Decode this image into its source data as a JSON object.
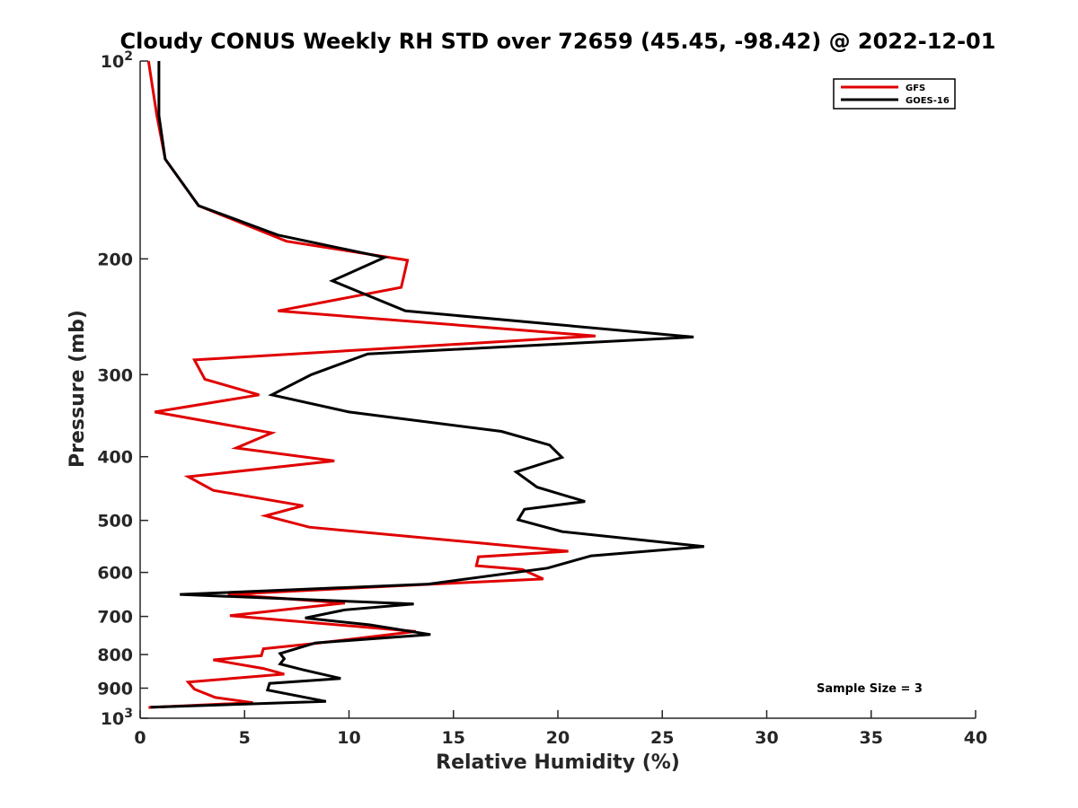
{
  "chart_data": {
    "type": "line",
    "title": "Cloudy CONUS Weekly RH STD over 72659 (45.45, -98.42) @ 2022-12-01",
    "xlabel": "Relative Humidity (%)",
    "ylabel": "Pressure (mb)",
    "xlim": [
      0,
      40
    ],
    "ylim": [
      100,
      1000
    ],
    "y_scale": "log",
    "y_reversed": true,
    "x_ticks": [
      0,
      5,
      10,
      15,
      20,
      25,
      30,
      35,
      40
    ],
    "x_tick_labels": [
      "0",
      "5",
      "10",
      "15",
      "20",
      "25",
      "30",
      "35",
      "40"
    ],
    "y_ticks": [
      100,
      200,
      300,
      400,
      500,
      600,
      700,
      800,
      900,
      1000
    ],
    "y_tick_labels": [
      "10^2",
      "200",
      "300",
      "400",
      "500",
      "600",
      "700",
      "800",
      "900",
      "10^3"
    ],
    "grid": false,
    "legend_position": "top-right",
    "annotation": "Sample Size = 3",
    "series": [
      {
        "name": "GFS",
        "color": "#e00000",
        "points": [
          [
            0.4,
            100
          ],
          [
            0.8,
            121
          ],
          [
            1.2,
            141
          ],
          [
            2.8,
            166
          ],
          [
            7.0,
            188
          ],
          [
            12.8,
            201
          ],
          [
            12.5,
            221
          ],
          [
            6.6,
            240
          ],
          [
            21.8,
            262
          ],
          [
            2.6,
            285
          ],
          [
            3.1,
            305
          ],
          [
            5.7,
            322
          ],
          [
            0.7,
            342
          ],
          [
            6.3,
            368
          ],
          [
            4.6,
            388
          ],
          [
            9.3,
            406
          ],
          [
            2.3,
            429
          ],
          [
            3.5,
            450
          ],
          [
            7.8,
            475
          ],
          [
            6.0,
            492
          ],
          [
            8.1,
            512
          ],
          [
            20.5,
            557
          ],
          [
            16.2,
            568
          ],
          [
            16.1,
            586
          ],
          [
            18.3,
            594
          ],
          [
            19.3,
            614
          ],
          [
            14.0,
            625
          ],
          [
            4.2,
            648
          ],
          [
            9.8,
            668
          ],
          [
            4.3,
            698
          ],
          [
            13.2,
            738
          ],
          [
            8.3,
            770
          ],
          [
            5.9,
            784
          ],
          [
            5.8,
            803
          ],
          [
            3.5,
            815
          ],
          [
            5.9,
            840
          ],
          [
            6.9,
            857
          ],
          [
            2.3,
            881
          ],
          [
            2.6,
            903
          ],
          [
            3.6,
            930
          ],
          [
            5.4,
            947
          ],
          [
            0.4,
            963
          ]
        ]
      },
      {
        "name": "GOES-16",
        "color": "#000000",
        "points": [
          [
            0.9,
            100
          ],
          [
            0.9,
            121
          ],
          [
            1.2,
            141
          ],
          [
            2.8,
            166
          ],
          [
            6.6,
            184
          ],
          [
            11.7,
            199
          ],
          [
            9.2,
            216
          ],
          [
            12.7,
            240
          ],
          [
            26.5,
            263
          ],
          [
            10.9,
            279
          ],
          [
            8.2,
            300
          ],
          [
            6.3,
            322
          ],
          [
            10.0,
            342
          ],
          [
            17.3,
            366
          ],
          [
            19.6,
            384
          ],
          [
            20.2,
            401
          ],
          [
            18.0,
            422
          ],
          [
            19.0,
            445
          ],
          [
            21.3,
            468
          ],
          [
            18.4,
            481
          ],
          [
            18.1,
            499
          ],
          [
            20.2,
            520
          ],
          [
            27.0,
            548
          ],
          [
            21.6,
            566
          ],
          [
            19.5,
            591
          ],
          [
            13.8,
            625
          ],
          [
            1.9,
            648
          ],
          [
            13.1,
            670
          ],
          [
            9.8,
            684
          ],
          [
            7.9,
            704
          ],
          [
            11.0,
            721
          ],
          [
            13.9,
            746
          ],
          [
            8.4,
            768
          ],
          [
            6.7,
            797
          ],
          [
            6.9,
            812
          ],
          [
            6.7,
            827
          ],
          [
            7.8,
            844
          ],
          [
            9.6,
            870
          ],
          [
            6.2,
            885
          ],
          [
            6.1,
            906
          ],
          [
            8.9,
            943
          ],
          [
            0.5,
            962
          ]
        ]
      }
    ]
  }
}
